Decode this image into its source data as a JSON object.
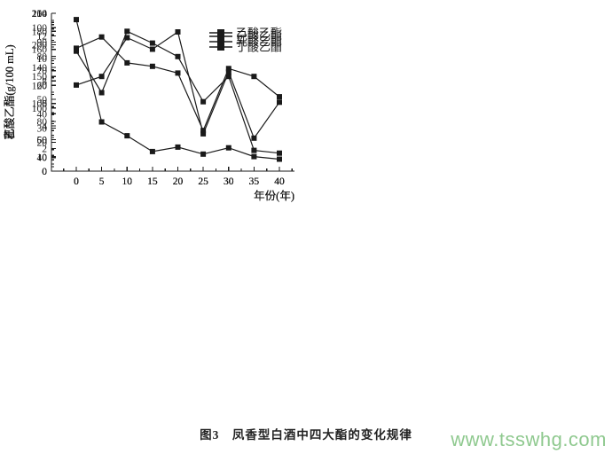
{
  "figure": {
    "caption": "图3　凤香型白酒中四大酯的变化规律",
    "watermark": "www.tsswhg.com",
    "watermark_color": "#8fc98f",
    "ink_color": "#1a1a1a",
    "background_color": "#ffffff"
  },
  "chart_data": [
    {
      "type": "line",
      "name": "ethyl-acetate",
      "legend": "乙酸乙酯",
      "ylabel": "乙酸乙酯(g/100 mL)",
      "xlabel": "年份(年)",
      "x": [
        0,
        5,
        10,
        15,
        20,
        25,
        30,
        35,
        40
      ],
      "values": [
        240,
        78,
        56,
        31,
        38,
        27,
        37,
        23,
        19
      ],
      "ylim": [
        0,
        250
      ],
      "ytick_major": 50,
      "ytick_minor": 25,
      "xlim": [
        0,
        40
      ],
      "xtick_major": 5,
      "marker": "square",
      "grid": false,
      "legend_position": "top-right",
      "legend_offset_y": 22
    },
    {
      "type": "line",
      "name": "ethyl-hexanoate",
      "legend": "己酸乙酯",
      "ylabel": "己酸乙酯(g/100 mL)",
      "xlabel": "年份(年)",
      "x": [
        0,
        5,
        10,
        15,
        20,
        25,
        30,
        35,
        40
      ],
      "values": [
        60,
        66,
        93,
        85,
        97,
        26,
        69,
        23,
        48
      ],
      "ylim": [
        0,
        110
      ],
      "ytick_major": 10,
      "ytick_minor": 5,
      "xlim": [
        0,
        40
      ],
      "xtick_major": 5,
      "marker": "square",
      "grid": false,
      "legend_position": "top-right",
      "legend_offset_y": 26
    },
    {
      "type": "line",
      "name": "ethyl-lactate",
      "legend": "乳酸乙酯",
      "ylabel": "乳酸乙酯(g/100 mL)",
      "xlabel": "年份(年)",
      "x": [
        0,
        5,
        10,
        15,
        20,
        25,
        30,
        35,
        40
      ],
      "values": [
        158,
        112,
        180,
        167,
        152,
        102,
        130,
        48,
        45
      ],
      "ylim": [
        40,
        200
      ],
      "draw_min": 25,
      "ytick_major": 20,
      "ytick_minor": 10,
      "xlim": [
        0,
        40
      ],
      "xtick_major": 5,
      "marker": "square",
      "grid": false,
      "legend_position": "top-right",
      "legend_offset_y": 32
    },
    {
      "type": "line",
      "name": "ethyl-butyrate",
      "legend": "丁酸乙酯",
      "ylabel": "丁酸乙酯(g/100 mL)",
      "xlabel": "年份(年)",
      "x": [
        0,
        5,
        10,
        15,
        20,
        25,
        30,
        35,
        40
      ],
      "values": [
        10.9,
        11.9,
        9.6,
        9.3,
        8.7,
        3.6,
        9.1,
        8.4,
        6.6
      ],
      "ylim": [
        0,
        14
      ],
      "ytick_major": 2,
      "ytick_minor": 1,
      "xlim": [
        0,
        40
      ],
      "xtick_major": 5,
      "marker": "square",
      "grid": false,
      "legend_position": "top-right",
      "legend_offset_y": 38
    }
  ]
}
